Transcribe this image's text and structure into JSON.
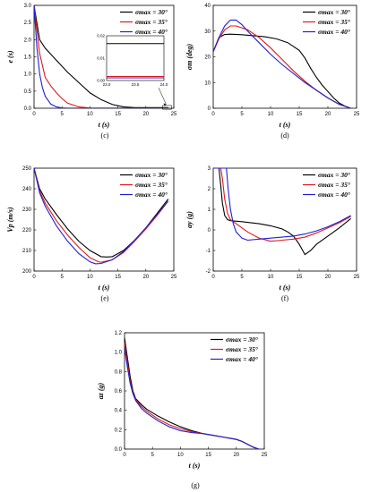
{
  "legend_labels": [
    "σmax = 30°",
    "σmax = 35°",
    "σmax = 40°"
  ],
  "colors": {
    "s30": "#000000",
    "s35": "#e0191b",
    "s40": "#1f1fd6"
  },
  "chart_data": [
    {
      "id": "c",
      "type": "line",
      "caption": "(c)",
      "xlabel": "t (s)",
      "ylabel": "e (s)",
      "xlim": [
        0,
        25
      ],
      "ylim": [
        0,
        3.0
      ],
      "xticks": [
        0,
        5,
        10,
        15,
        20,
        25
      ],
      "yticks": [
        0.0,
        0.5,
        1.0,
        1.5,
        2.0,
        2.5,
        3.0
      ],
      "xtick_labels": [
        "0",
        "5",
        "10",
        "15",
        "20",
        "25"
      ],
      "ytick_labels": [
        "0.0",
        "0.5",
        "1.0",
        "1.5",
        "2.0",
        "2.5",
        "3.0"
      ],
      "legend": "top-right",
      "series": [
        {
          "name": "σmax = 30°",
          "x": [
            0,
            1,
            2,
            4,
            6,
            8,
            10,
            12,
            14,
            16,
            18,
            20,
            22,
            24
          ],
          "y": [
            3.0,
            2.0,
            1.75,
            1.4,
            1.05,
            0.75,
            0.45,
            0.25,
            0.11,
            0.04,
            0.017,
            0.017,
            0.017,
            0.017
          ]
        },
        {
          "name": "σmax = 35°",
          "x": [
            0,
            1,
            2,
            3,
            4,
            5,
            6,
            8,
            10,
            14,
            20,
            24
          ],
          "y": [
            3.0,
            1.6,
            0.9,
            0.65,
            0.45,
            0.28,
            0.15,
            0.04,
            0.005,
            0.002,
            0.002,
            0.002
          ]
        },
        {
          "name": "σmax = 40°",
          "x": [
            0,
            0.5,
            1,
            1.5,
            2,
            3,
            4,
            5,
            6,
            8,
            12,
            24
          ],
          "y": [
            3.0,
            1.8,
            1.0,
            0.6,
            0.35,
            0.12,
            0.04,
            0.01,
            0.003,
            0.001,
            0.001,
            0.001
          ]
        }
      ],
      "inset": {
        "xlim": [
          23.0,
          24.0
        ],
        "ylim": [
          0.0,
          0.02
        ],
        "xticks": [
          23.0,
          23.5,
          24.0
        ],
        "yticks": [
          0.0,
          0.01,
          0.02
        ],
        "xtick_labels": [
          "23.0",
          "23.5",
          "24.0"
        ],
        "ytick_labels": [
          "0.00",
          "0.01",
          "0.02"
        ],
        "series": [
          {
            "name": "σmax = 30°",
            "x": [
              23.0,
              24.0
            ],
            "y": [
              0.0165,
              0.0165
            ]
          },
          {
            "name": "σmax = 35°",
            "x": [
              23.0,
              24.0
            ],
            "y": [
              0.0018,
              0.0018
            ]
          },
          {
            "name": "σmax = 40°",
            "x": [
              23.0,
              24.0
            ],
            "y": [
              0.0012,
              0.0012
            ]
          }
        ]
      }
    },
    {
      "id": "d",
      "type": "line",
      "caption": "(d)",
      "xlabel": "t (s)",
      "ylabel": "σm (deg)",
      "xlim": [
        0,
        25
      ],
      "ylim": [
        0,
        40
      ],
      "xticks": [
        0,
        5,
        10,
        15,
        20,
        25
      ],
      "yticks": [
        0,
        10,
        20,
        30,
        40
      ],
      "xtick_labels": [
        "0",
        "5",
        "10",
        "15",
        "20",
        "25"
      ],
      "ytick_labels": [
        "0",
        "10",
        "20",
        "30",
        "40"
      ],
      "legend": "top-right",
      "series": [
        {
          "name": "σmax = 30°",
          "x": [
            0,
            1,
            2,
            3,
            5,
            7,
            9,
            11,
            13,
            15,
            16,
            17,
            18,
            19,
            20,
            21,
            22,
            23,
            24
          ],
          "y": [
            22,
            27.5,
            28.7,
            28.8,
            28.6,
            28.2,
            27.8,
            27,
            25.5,
            22.5,
            19.5,
            15.5,
            12,
            9,
            6.5,
            4,
            2,
            0.8,
            0
          ]
        },
        {
          "name": "σmax = 35°",
          "x": [
            0,
            1,
            2,
            3,
            4,
            6,
            8,
            10,
            12,
            14,
            16,
            18,
            20,
            22,
            24
          ],
          "y": [
            22,
            27,
            30.5,
            32,
            32,
            30.5,
            27.5,
            23.5,
            19,
            14.5,
            10.5,
            7,
            4,
            1.5,
            0
          ]
        },
        {
          "name": "σmax = 40°",
          "x": [
            0,
            1,
            2,
            3,
            4,
            5,
            6,
            8,
            10,
            12,
            14,
            16,
            18,
            20,
            22,
            24
          ],
          "y": [
            22,
            27.5,
            32,
            34.3,
            34.3,
            32.5,
            30,
            25.5,
            21,
            17,
            13.5,
            10,
            7,
            4,
            1.5,
            0
          ]
        }
      ]
    },
    {
      "id": "e",
      "type": "line",
      "caption": "(e)",
      "xlabel": "t (s)",
      "ylabel": "Vp (m/s)",
      "xlim": [
        0,
        25
      ],
      "ylim": [
        200,
        250
      ],
      "xticks": [
        0,
        5,
        10,
        15,
        20,
        25
      ],
      "yticks": [
        200,
        210,
        220,
        230,
        240,
        250
      ],
      "xtick_labels": [
        "0",
        "5",
        "10",
        "15",
        "20",
        "25"
      ],
      "ytick_labels": [
        "200",
        "210",
        "220",
        "230",
        "240",
        "250"
      ],
      "legend": "top-right",
      "series": [
        {
          "name": "σmax = 30°",
          "x": [
            0,
            1,
            2,
            4,
            6,
            8,
            10,
            12,
            13,
            14,
            16,
            18,
            20,
            22,
            24
          ],
          "y": [
            250,
            240,
            235,
            227.5,
            220.5,
            214.5,
            210,
            207,
            206.8,
            207,
            210,
            215,
            221,
            228,
            235
          ]
        },
        {
          "name": "σmax = 35°",
          "x": [
            0,
            1,
            2,
            4,
            6,
            8,
            10,
            11.5,
            12,
            14,
            16,
            18,
            20,
            22,
            24
          ],
          "y": [
            250,
            239,
            233,
            224.5,
            217.5,
            211.5,
            206.5,
            204.5,
            204.3,
            205.5,
            209,
            214.5,
            220.5,
            227,
            234
          ]
        },
        {
          "name": "σmax = 40°",
          "x": [
            0,
            1,
            2,
            4,
            6,
            8,
            10,
            11,
            12,
            14,
            16,
            18,
            20,
            22,
            24
          ],
          "y": [
            250,
            238,
            231.5,
            222,
            214.5,
            208.5,
            204.5,
            203.5,
            203.7,
            205.5,
            209.5,
            215,
            221,
            227.5,
            234
          ]
        }
      ]
    },
    {
      "id": "f",
      "type": "line",
      "caption": "(f)",
      "xlabel": "t (s)",
      "ylabel": "ay (g)",
      "xlim": [
        0,
        25
      ],
      "ylim": [
        -2,
        3
      ],
      "xticks": [
        0,
        5,
        10,
        15,
        20,
        25
      ],
      "yticks": [
        -2,
        -1,
        0,
        1,
        2,
        3
      ],
      "xtick_labels": [
        "0",
        "5",
        "10",
        "15",
        "20",
        "25"
      ],
      "ytick_labels": [
        "-2",
        "-1",
        "0",
        "1",
        "2",
        "3"
      ],
      "legend": "top-right",
      "series": [
        {
          "name": "σmax = 30°",
          "x": [
            0,
            1.0,
            1.3,
            1.6,
            2,
            2.5,
            3,
            5,
            8,
            10,
            12,
            13,
            14,
            15,
            16,
            17,
            18,
            20,
            22,
            24
          ],
          "y": [
            3,
            3,
            2.2,
            1.3,
            0.7,
            0.5,
            0.45,
            0.4,
            0.3,
            0.2,
            0.05,
            -0.1,
            -0.3,
            -0.7,
            -1.2,
            -1.0,
            -0.7,
            -0.3,
            0.1,
            0.55
          ]
        },
        {
          "name": "σmax = 35°",
          "x": [
            0,
            1.3,
            1.6,
            2,
            2.5,
            3,
            4,
            5,
            6,
            8,
            10,
            12,
            14,
            16,
            18,
            20,
            22,
            24
          ],
          "y": [
            3,
            3,
            2.5,
            1.5,
            0.8,
            0.5,
            0.3,
            0.1,
            -0.1,
            -0.4,
            -0.55,
            -0.5,
            -0.45,
            -0.35,
            -0.15,
            0.1,
            0.35,
            0.65
          ]
        },
        {
          "name": "σmax = 40°",
          "x": [
            0,
            2.3,
            2.6,
            3,
            3.5,
            4,
            5,
            6,
            8,
            10,
            12,
            14,
            16,
            18,
            20,
            22,
            24
          ],
          "y": [
            3,
            3,
            2.0,
            1.0,
            0.3,
            -0.1,
            -0.4,
            -0.5,
            -0.45,
            -0.4,
            -0.35,
            -0.3,
            -0.2,
            -0.05,
            0.15,
            0.4,
            0.7
          ]
        }
      ]
    },
    {
      "id": "g",
      "type": "line",
      "caption": "(g)",
      "xlabel": "t (s)",
      "ylabel": "az (g)",
      "xlim": [
        0,
        25
      ],
      "ylim": [
        0,
        1.2
      ],
      "xticks": [
        0,
        5,
        10,
        15,
        20,
        25
      ],
      "yticks": [
        0.0,
        0.2,
        0.4,
        0.6,
        0.8,
        1.0,
        1.2
      ],
      "xtick_labels": [
        "0",
        "5",
        "10",
        "15",
        "20",
        "25"
      ],
      "ytick_labels": [
        "0.0",
        "0.2",
        "0.4",
        "0.6",
        "0.8",
        "1.0",
        "1.2"
      ],
      "legend": "top-right",
      "series": [
        {
          "name": "σmax = 30°",
          "x": [
            0,
            0.5,
            1,
            1.5,
            2,
            3,
            4,
            6,
            8,
            10,
            12,
            14,
            16,
            18,
            20,
            21,
            22,
            23,
            24
          ],
          "y": [
            1.15,
            0.95,
            0.75,
            0.6,
            0.52,
            0.46,
            0.41,
            0.34,
            0.28,
            0.23,
            0.19,
            0.16,
            0.14,
            0.12,
            0.1,
            0.08,
            0.05,
            0.02,
            0
          ]
        },
        {
          "name": "σmax = 35°",
          "x": [
            0,
            0.5,
            1,
            1.5,
            2,
            3,
            4,
            6,
            8,
            10,
            12,
            14,
            16,
            18,
            20,
            21,
            22,
            23,
            24
          ],
          "y": [
            1.1,
            0.9,
            0.7,
            0.58,
            0.51,
            0.44,
            0.39,
            0.31,
            0.25,
            0.21,
            0.18,
            0.16,
            0.14,
            0.12,
            0.1,
            0.08,
            0.05,
            0.02,
            0
          ]
        },
        {
          "name": "σmax = 40°",
          "x": [
            0,
            0.5,
            1,
            1.5,
            2,
            3,
            4,
            6,
            8,
            10,
            12,
            14,
            16,
            18,
            20,
            21,
            22,
            23,
            24
          ],
          "y": [
            1.05,
            0.85,
            0.68,
            0.57,
            0.5,
            0.42,
            0.37,
            0.29,
            0.23,
            0.19,
            0.17,
            0.16,
            0.14,
            0.12,
            0.1,
            0.08,
            0.05,
            0.02,
            0
          ]
        }
      ]
    }
  ]
}
